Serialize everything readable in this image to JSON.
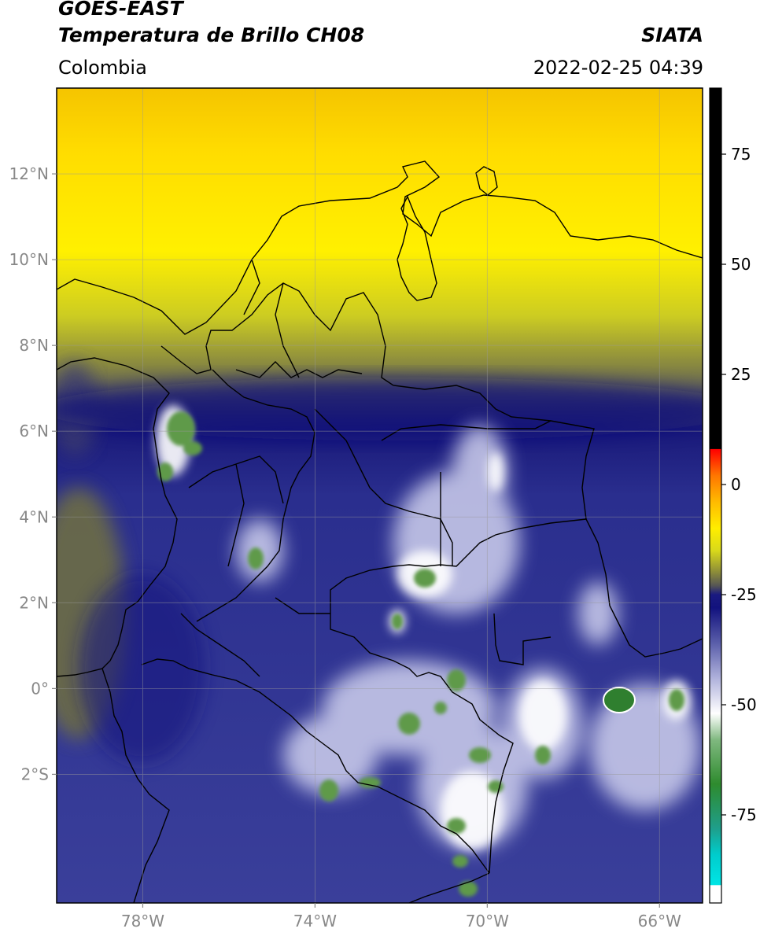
{
  "header": {
    "satellite": "GOES-EAST",
    "product": "Temperatura de Brillo CH08",
    "region": "Colombia",
    "institution": "SIATA",
    "datetime": "2022-02-25 04:39"
  },
  "map": {
    "lon_range": [
      -80,
      -65
    ],
    "lat_range": [
      -5,
      14
    ],
    "lat_ticks": [
      {
        "value": 12,
        "label": "12°N"
      },
      {
        "value": 10,
        "label": "10°N"
      },
      {
        "value": 8,
        "label": "8°N"
      },
      {
        "value": 6,
        "label": "6°N"
      },
      {
        "value": 4,
        "label": "4°N"
      },
      {
        "value": 2,
        "label": "2°N"
      },
      {
        "value": 0,
        "label": "0°"
      },
      {
        "value": -2,
        "label": "2°S"
      }
    ],
    "lon_ticks": [
      {
        "value": -78,
        "label": "78°W"
      },
      {
        "value": -74,
        "label": "74°W"
      },
      {
        "value": -70,
        "label": "70°W"
      },
      {
        "value": -66,
        "label": "66°W"
      }
    ],
    "gridlines": true
  },
  "colorbar": {
    "range": [
      -95,
      90
    ],
    "ticks": [
      {
        "value": 75,
        "label": "75"
      },
      {
        "value": 50,
        "label": "50"
      },
      {
        "value": 25,
        "label": "25"
      },
      {
        "value": 0,
        "label": "0"
      },
      {
        "value": -25,
        "label": "-25"
      },
      {
        "value": -50,
        "label": "-50"
      },
      {
        "value": -75,
        "label": "-75"
      }
    ],
    "stops": [
      {
        "value": -95,
        "color": "#ffffff"
      },
      {
        "value": -91,
        "color": "#ffffff"
      },
      {
        "value": -90.9,
        "color": "#00e5e5"
      },
      {
        "value": -84,
        "color": "#00cccc"
      },
      {
        "value": -78,
        "color": "#1f9e8a"
      },
      {
        "value": -68,
        "color": "#2e8b2e"
      },
      {
        "value": -58,
        "color": "#7fb87f"
      },
      {
        "value": -52,
        "color": "#ffffff"
      },
      {
        "value": -44,
        "color": "#b0b2dc"
      },
      {
        "value": -36,
        "color": "#5a5eaa"
      },
      {
        "value": -28,
        "color": "#12127e"
      },
      {
        "value": -25,
        "color": "#1a1a80"
      },
      {
        "value": -23,
        "color": "#555555"
      },
      {
        "value": -20,
        "color": "#8a8a3a"
      },
      {
        "value": -15,
        "color": "#d9d91a"
      },
      {
        "value": -10,
        "color": "#ffee00"
      },
      {
        "value": -4,
        "color": "#ffbb00"
      },
      {
        "value": 2,
        "color": "#ff7700"
      },
      {
        "value": 8,
        "color": "#ff0000"
      },
      {
        "value": 8.1,
        "color": "#000000"
      },
      {
        "value": 90,
        "color": "#000000"
      }
    ]
  }
}
